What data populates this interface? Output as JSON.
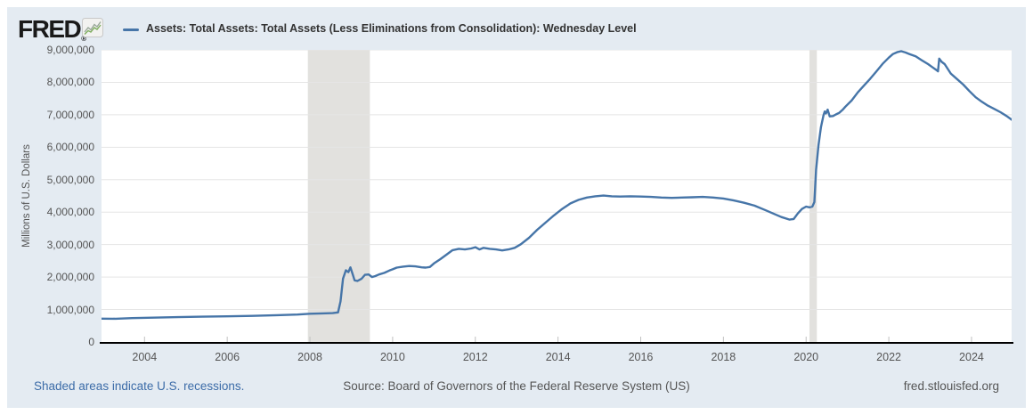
{
  "colors": {
    "chart_bg": "#e4ebf2",
    "plot_bg": "#ffffff",
    "line": "#4675a8",
    "gridline": "#e5e5e5",
    "recession_band": "#e2e1de",
    "axis_line": "#000000",
    "tick": "#c0c0c0",
    "tick_label": "#555555",
    "title_text": "#333333",
    "link": "#3c6ca8",
    "footer_text": "#555555",
    "logo_text": "#1a1a1a",
    "icon_green": "#7fae5f",
    "icon_gray": "#9aa89a"
  },
  "header": {
    "logo_text": "FRED",
    "logo_mark": "®",
    "legend_label": "Assets: Total Assets: Total Assets (Less Eliminations from Consolidation): Wednesday Level"
  },
  "y_axis": {
    "title": "Millions of U.S. Dollars",
    "tick_labels": [
      "0",
      "1,000,000",
      "2,000,000",
      "3,000,000",
      "4,000,000",
      "5,000,000",
      "6,000,000",
      "7,000,000",
      "8,000,000",
      "9,000,000"
    ],
    "tick_values": [
      0,
      1000000,
      2000000,
      3000000,
      4000000,
      5000000,
      6000000,
      7000000,
      8000000,
      9000000
    ]
  },
  "x_axis": {
    "tick_labels": [
      "2004",
      "2006",
      "2008",
      "2010",
      "2012",
      "2014",
      "2016",
      "2018",
      "2020",
      "2022",
      "2024"
    ],
    "tick_values": [
      2004,
      2006,
      2008,
      2010,
      2012,
      2014,
      2016,
      2018,
      2020,
      2022,
      2024
    ]
  },
  "footer": {
    "recession_note": "Shaded areas indicate U.S. recessions.",
    "source": "Source: Board of Governors of the Federal Reserve System (US)",
    "site": "fred.stlouisfed.org"
  },
  "chart_data": {
    "type": "line",
    "title": "Assets: Total Assets: Total Assets (Less Eliminations from Consolidation): Wednesday Level",
    "xlabel": "",
    "ylabel": "Millions of U.S. Dollars",
    "x_range_years": [
      2002.96,
      2024.97
    ],
    "ylim": [
      0,
      9000000
    ],
    "grid": "horizontal",
    "legend_position": "top",
    "recessions": [
      {
        "start": 2007.95,
        "end": 2009.45
      },
      {
        "start": 2020.08,
        "end": 2020.26
      }
    ],
    "series": [
      {
        "name": "Assets: Total Assets: Total Assets (Less Eliminations from Consolidation): Wednesday Level",
        "color": "#4675a8",
        "points": [
          [
            2002.96,
            720000
          ],
          [
            2003.3,
            715000
          ],
          [
            2003.7,
            735000
          ],
          [
            2004.2,
            750000
          ],
          [
            2004.8,
            765000
          ],
          [
            2005.4,
            780000
          ],
          [
            2006.0,
            790000
          ],
          [
            2006.6,
            805000
          ],
          [
            2007.2,
            825000
          ],
          [
            2007.7,
            845000
          ],
          [
            2008.0,
            870000
          ],
          [
            2008.3,
            880000
          ],
          [
            2008.55,
            890000
          ],
          [
            2008.68,
            910000
          ],
          [
            2008.74,
            1250000
          ],
          [
            2008.8,
            1950000
          ],
          [
            2008.87,
            2210000
          ],
          [
            2008.93,
            2150000
          ],
          [
            2008.98,
            2300000
          ],
          [
            2009.03,
            2100000
          ],
          [
            2009.08,
            1900000
          ],
          [
            2009.15,
            1880000
          ],
          [
            2009.25,
            1950000
          ],
          [
            2009.33,
            2070000
          ],
          [
            2009.42,
            2080000
          ],
          [
            2009.5,
            2000000
          ],
          [
            2009.58,
            2030000
          ],
          [
            2009.67,
            2080000
          ],
          [
            2009.8,
            2130000
          ],
          [
            2009.92,
            2200000
          ],
          [
            2010.0,
            2240000
          ],
          [
            2010.1,
            2290000
          ],
          [
            2010.25,
            2320000
          ],
          [
            2010.4,
            2340000
          ],
          [
            2010.55,
            2330000
          ],
          [
            2010.7,
            2300000
          ],
          [
            2010.8,
            2290000
          ],
          [
            2010.9,
            2310000
          ],
          [
            2011.0,
            2420000
          ],
          [
            2011.15,
            2550000
          ],
          [
            2011.3,
            2690000
          ],
          [
            2011.45,
            2830000
          ],
          [
            2011.6,
            2870000
          ],
          [
            2011.75,
            2850000
          ],
          [
            2011.9,
            2880000
          ],
          [
            2012.0,
            2920000
          ],
          [
            2012.1,
            2850000
          ],
          [
            2012.2,
            2900000
          ],
          [
            2012.35,
            2870000
          ],
          [
            2012.5,
            2850000
          ],
          [
            2012.65,
            2820000
          ],
          [
            2012.8,
            2850000
          ],
          [
            2012.95,
            2900000
          ],
          [
            2013.1,
            3010000
          ],
          [
            2013.3,
            3210000
          ],
          [
            2013.5,
            3460000
          ],
          [
            2013.7,
            3680000
          ],
          [
            2013.9,
            3900000
          ],
          [
            2014.1,
            4100000
          ],
          [
            2014.3,
            4270000
          ],
          [
            2014.5,
            4380000
          ],
          [
            2014.7,
            4450000
          ],
          [
            2014.9,
            4490000
          ],
          [
            2015.1,
            4510000
          ],
          [
            2015.3,
            4490000
          ],
          [
            2015.5,
            4480000
          ],
          [
            2015.75,
            4490000
          ],
          [
            2016.0,
            4480000
          ],
          [
            2016.25,
            4470000
          ],
          [
            2016.5,
            4450000
          ],
          [
            2016.75,
            4440000
          ],
          [
            2017.0,
            4450000
          ],
          [
            2017.25,
            4460000
          ],
          [
            2017.5,
            4470000
          ],
          [
            2017.75,
            4450000
          ],
          [
            2018.0,
            4420000
          ],
          [
            2018.25,
            4360000
          ],
          [
            2018.5,
            4290000
          ],
          [
            2018.75,
            4200000
          ],
          [
            2019.0,
            4070000
          ],
          [
            2019.2,
            3960000
          ],
          [
            2019.4,
            3850000
          ],
          [
            2019.6,
            3770000
          ],
          [
            2019.7,
            3790000
          ],
          [
            2019.8,
            3960000
          ],
          [
            2019.9,
            4100000
          ],
          [
            2020.0,
            4170000
          ],
          [
            2020.08,
            4150000
          ],
          [
            2020.15,
            4170000
          ],
          [
            2020.2,
            4310000
          ],
          [
            2020.24,
            5300000
          ],
          [
            2020.3,
            6080000
          ],
          [
            2020.36,
            6620000
          ],
          [
            2020.42,
            6980000
          ],
          [
            2020.45,
            7100000
          ],
          [
            2020.48,
            7040000
          ],
          [
            2020.52,
            7160000
          ],
          [
            2020.57,
            6950000
          ],
          [
            2020.65,
            6960000
          ],
          [
            2020.72,
            7010000
          ],
          [
            2020.8,
            7060000
          ],
          [
            2020.88,
            7150000
          ],
          [
            2020.95,
            7250000
          ],
          [
            2021.1,
            7440000
          ],
          [
            2021.25,
            7690000
          ],
          [
            2021.4,
            7900000
          ],
          [
            2021.55,
            8110000
          ],
          [
            2021.7,
            8340000
          ],
          [
            2021.85,
            8570000
          ],
          [
            2022.0,
            8760000
          ],
          [
            2022.1,
            8870000
          ],
          [
            2022.2,
            8930000
          ],
          [
            2022.3,
            8960000
          ],
          [
            2022.4,
            8920000
          ],
          [
            2022.5,
            8870000
          ],
          [
            2022.65,
            8800000
          ],
          [
            2022.8,
            8680000
          ],
          [
            2022.95,
            8560000
          ],
          [
            2023.05,
            8470000
          ],
          [
            2023.15,
            8380000
          ],
          [
            2023.19,
            8340000
          ],
          [
            2023.22,
            8730000
          ],
          [
            2023.28,
            8630000
          ],
          [
            2023.35,
            8560000
          ],
          [
            2023.5,
            8270000
          ],
          [
            2023.65,
            8100000
          ],
          [
            2023.8,
            7930000
          ],
          [
            2023.95,
            7730000
          ],
          [
            2024.1,
            7540000
          ],
          [
            2024.25,
            7400000
          ],
          [
            2024.4,
            7280000
          ],
          [
            2024.55,
            7180000
          ],
          [
            2024.7,
            7080000
          ],
          [
            2024.85,
            6960000
          ],
          [
            2024.97,
            6850000
          ]
        ]
      }
    ]
  }
}
